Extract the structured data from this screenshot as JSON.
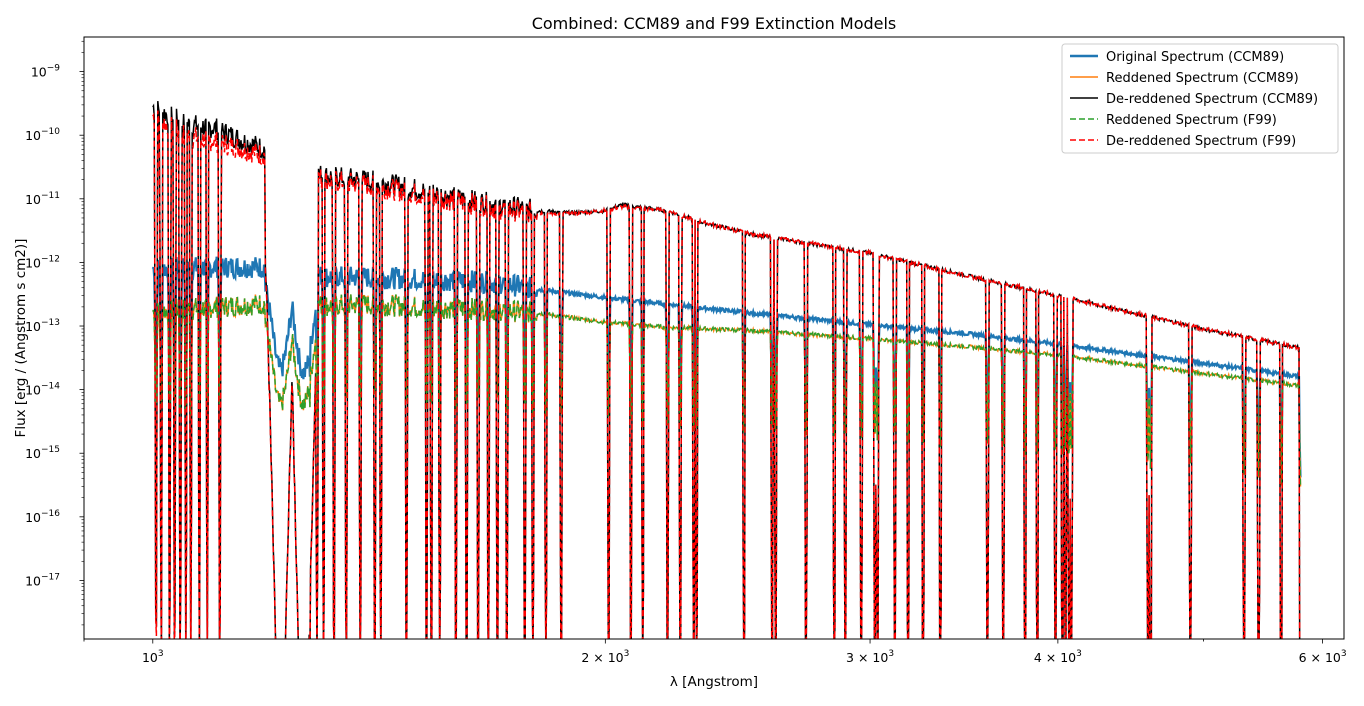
{
  "chart_data": {
    "type": "line",
    "title": "Combined: CCM89 and F99 Extinction Models",
    "xlabel": "λ [Angstrom]",
    "ylabel": "Flux [erg / (Angstrom s cm2)]",
    "xscale": "log",
    "yscale": "log",
    "xlim": [
      900,
      6200
    ],
    "ylim": [
      1.2e-18,
      3.5e-09
    ],
    "grid": false,
    "legend_position": "top-right",
    "x_ticks": [
      {
        "value": 1000,
        "base": "10",
        "exp": "3",
        "mantissa": ""
      },
      {
        "value": 2000,
        "base": "10",
        "exp": "3",
        "mantissa": "2 × "
      },
      {
        "value": 3000,
        "base": "10",
        "exp": "3",
        "mantissa": "3 × "
      },
      {
        "value": 4000,
        "base": "10",
        "exp": "3",
        "mantissa": "4 × "
      },
      {
        "value": 6000,
        "base": "10",
        "exp": "3",
        "mantissa": "6 × "
      }
    ],
    "y_ticks": [
      {
        "value": 1e-17,
        "base": "10",
        "exp": "−17"
      },
      {
        "value": 1e-16,
        "base": "10",
        "exp": "−16"
      },
      {
        "value": 1e-15,
        "base": "10",
        "exp": "−15"
      },
      {
        "value": 1e-14,
        "base": "10",
        "exp": "−14"
      },
      {
        "value": 1e-13,
        "base": "10",
        "exp": "−13"
      },
      {
        "value": 1e-12,
        "base": "10",
        "exp": "−12"
      },
      {
        "value": 1e-11,
        "base": "10",
        "exp": "−11"
      },
      {
        "value": 1e-10,
        "base": "10",
        "exp": "−10"
      },
      {
        "value": 1e-09,
        "base": "10",
        "exp": "−9"
      }
    ],
    "series": [
      {
        "name": "Original Spectrum (CCM89)",
        "color": "#1f77b4",
        "style": "solid",
        "x": [
          1000,
          1100,
          1200,
          1250,
          1300,
          1400,
          1500,
          1600,
          1700,
          1800,
          2000,
          2200,
          2500,
          3000,
          3500,
          4000,
          5000,
          5800
        ],
        "y": [
          8e-13,
          8.5e-13,
          8.5e-13,
          7.5e-13,
          6e-13,
          5.8e-13,
          5.5e-13,
          5.2e-13,
          4.8e-13,
          3.8e-13,
          2.8e-13,
          2.2e-13,
          1.6e-13,
          1.05e-13,
          7.5e-14,
          5.2e-14,
          2.6e-14,
          1.6e-14
        ]
      },
      {
        "name": "Reddened Spectrum (CCM89)",
        "color": "#ff7f0e",
        "style": "solid",
        "x": [
          1000,
          1100,
          1200,
          1250,
          1300,
          1400,
          1500,
          1600,
          1700,
          1800,
          2000,
          2200,
          2500,
          3000,
          3500,
          4000,
          5000,
          5800
        ],
        "y": [
          1.7e-13,
          2e-13,
          2.3e-13,
          2.4e-13,
          2.1e-13,
          2.2e-13,
          2e-13,
          1.9e-13,
          1.8e-13,
          1.6e-13,
          1.15e-13,
          9.5e-14,
          8.5e-14,
          6.3e-14,
          4.7e-14,
          3.5e-14,
          1.8e-14,
          1.15e-14
        ]
      },
      {
        "name": "De-reddened Spectrum (CCM89)",
        "color": "#000000",
        "style": "solid",
        "x": [
          1000,
          1050,
          1100,
          1150,
          1200,
          1250,
          1300,
          1400,
          1500,
          1600,
          1700,
          1800,
          1900,
          2000,
          2050,
          2200,
          2300,
          2500,
          3000,
          3500,
          4000,
          5000,
          5800
        ],
        "y": [
          2.8e-10,
          1.5e-10,
          1.3e-10,
          8e-11,
          5.5e-11,
          3e-11,
          2.3e-11,
          1.9e-11,
          1.4e-11,
          1e-11,
          8e-12,
          6.5e-12,
          6e-12,
          6.5e-12,
          8e-12,
          6.5e-12,
          4.5e-12,
          2.8e-12,
          1.4e-12,
          6e-13,
          3e-13,
          9e-14,
          4.5e-14
        ]
      },
      {
        "name": "Reddened Spectrum (F99)",
        "color": "#2ca02c",
        "style": "dashed",
        "x": [
          1000,
          1100,
          1200,
          1250,
          1300,
          1400,
          1500,
          1600,
          1700,
          1800,
          2000,
          2200,
          2500,
          3000,
          3500,
          4000,
          5000,
          5800
        ],
        "y": [
          1.7e-13,
          2e-13,
          2.3e-13,
          2.4e-13,
          2.1e-13,
          2.2e-13,
          2e-13,
          1.9e-13,
          1.8e-13,
          1.6e-13,
          1.15e-13,
          9.5e-14,
          8.5e-14,
          6.3e-14,
          4.7e-14,
          3.5e-14,
          1.8e-14,
          1.15e-14
        ]
      },
      {
        "name": "De-reddened Spectrum (F99)",
        "color": "#ff0000",
        "style": "dashed",
        "x": [
          1000,
          1050,
          1100,
          1150,
          1200,
          1250,
          1300,
          1400,
          1500,
          1600,
          1700,
          1800,
          1900,
          2000,
          2050,
          2200,
          2300,
          2500,
          3000,
          3500,
          4000,
          5000,
          5800
        ],
        "y": [
          2e-10,
          1e-10,
          8e-11,
          6e-11,
          4.5e-11,
          2.8e-11,
          2e-11,
          1.6e-11,
          1.2e-11,
          9e-12,
          7e-12,
          6e-12,
          5.8e-12,
          6.5e-12,
          7.5e-12,
          6.5e-12,
          4.5e-12,
          2.8e-12,
          1.4e-12,
          6e-13,
          3e-13,
          9e-14,
          4.5e-14
        ]
      }
    ],
    "absorption_lines_angstrom": [
      1005,
      1013,
      1026,
      1034,
      1043,
      1052,
      1060,
      1074,
      1087,
      1108,
      1264,
      1272,
      1286,
      1299,
      1320,
      1345,
      1374,
      1405,
      1418,
      1475,
      1521,
      1532,
      1552,
      1591,
      1617,
      1646,
      1672,
      1695,
      1720,
      1768,
      1790,
      1826,
      1869,
      2010,
      2080,
      2118,
      2200,
      2243,
      2290,
      2300,
      2473,
      2582,
      2596,
      2720,
      2840,
      2888,
      2960,
      3022,
      3034,
      3116,
      3180,
      3254,
      3341,
      3591,
      3679,
      3804,
      3876,
      3985,
      4028,
      4047,
      4069,
      4083,
      4592,
      4610,
      4900,
      5320,
      5440,
      5630,
      5800
    ],
    "strong_features_angstrom": [
      1216,
      1260
    ]
  }
}
